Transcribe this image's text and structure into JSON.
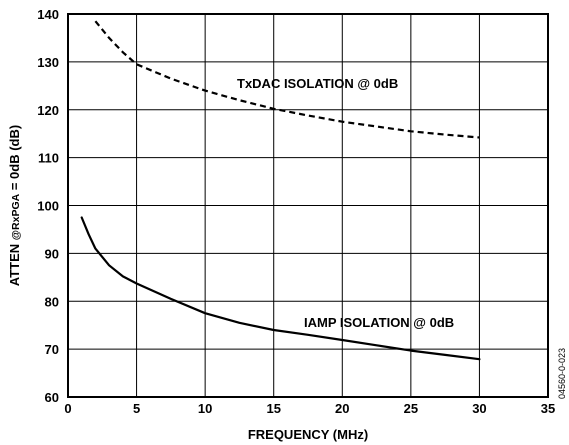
{
  "chart_data": {
    "type": "line",
    "xlabel": "FREQUENCY (MHz)",
    "ylabel": "ATTEN @RxPGA = 0dB (dB)",
    "xlim": [
      0,
      35
    ],
    "ylim": [
      60,
      140
    ],
    "xticks": [
      0,
      5,
      10,
      15,
      20,
      25,
      30,
      35
    ],
    "yticks": [
      60,
      70,
      80,
      90,
      100,
      110,
      120,
      130,
      140
    ],
    "grid": true,
    "figure_id": "04560-0-023",
    "series": [
      {
        "name": "TxDAC ISOLATION @ 0dB",
        "style": "dashed",
        "color": "#000000",
        "x": [
          2,
          3,
          4,
          5,
          7.5,
          10,
          12.5,
          15,
          17.5,
          20,
          22.5,
          25,
          27.5,
          30
        ],
        "y": [
          138.5,
          135,
          132,
          129.5,
          126.5,
          124,
          122,
          120.2,
          118.8,
          117.5,
          116.5,
          115.5,
          114.8,
          114.2
        ]
      },
      {
        "name": "IAMP ISOLATION @ 0dB",
        "style": "solid",
        "color": "#000000",
        "x": [
          1,
          1.5,
          2,
          3,
          4,
          5,
          7.5,
          10,
          12.5,
          15,
          17.5,
          20,
          22.5,
          25,
          27.5,
          30
        ],
        "y": [
          97.5,
          94,
          91,
          87.5,
          85.2,
          83.7,
          80.5,
          77.5,
          75.5,
          74,
          73,
          71.9,
          70.8,
          69.7,
          68.8,
          67.9
        ]
      }
    ]
  }
}
